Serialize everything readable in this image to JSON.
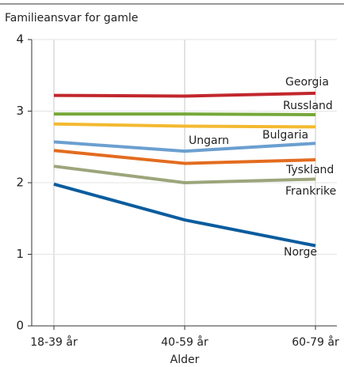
{
  "chart_data": {
    "type": "line",
    "title": "Familieansvar for gamle",
    "x_label": "Alder",
    "categories": [
      "18-39 år",
      "40-59 år",
      "60-79 år"
    ],
    "ylim": [
      0,
      4
    ],
    "yticks": [
      0,
      1,
      2,
      3,
      4
    ],
    "grid": true,
    "series": [
      {
        "name": "Georgia",
        "color": "#c1272d",
        "values": [
          3.22,
          3.21,
          3.25
        ]
      },
      {
        "name": "Russland",
        "color": "#76a83a",
        "values": [
          2.96,
          2.96,
          2.95
        ]
      },
      {
        "name": "Bulgaria",
        "color": "#f4b930",
        "values": [
          2.82,
          2.79,
          2.78
        ]
      },
      {
        "name": "Ungarn",
        "color": "#6b9fd0",
        "values": [
          2.57,
          2.44,
          2.55
        ]
      },
      {
        "name": "Tyskland",
        "color": "#e36c1f",
        "values": [
          2.45,
          2.27,
          2.32
        ]
      },
      {
        "name": "Frankrike",
        "color": "#9ca57b",
        "values": [
          2.23,
          2.0,
          2.05
        ]
      },
      {
        "name": "Norge",
        "color": "#0b5c9e",
        "values": [
          1.98,
          1.48,
          1.12
        ]
      }
    ]
  }
}
